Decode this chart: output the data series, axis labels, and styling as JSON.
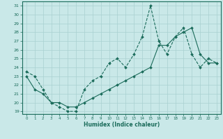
{
  "xlabel": "Humidex (Indice chaleur)",
  "background_color": "#c9e8e8",
  "grid_color": "#a8d0d0",
  "line_color": "#1a6b5a",
  "xlim": [
    -0.5,
    23.5
  ],
  "ylim": [
    18.7,
    31.5
  ],
  "yticks": [
    19,
    20,
    21,
    22,
    23,
    24,
    25,
    26,
    27,
    28,
    29,
    30,
    31
  ],
  "xticks": [
    0,
    1,
    2,
    3,
    4,
    5,
    6,
    7,
    8,
    9,
    10,
    11,
    12,
    13,
    14,
    15,
    16,
    17,
    18,
    19,
    20,
    21,
    22,
    23
  ],
  "line1_x": [
    0,
    1,
    2,
    3,
    4,
    5,
    6,
    7,
    8,
    9,
    10,
    11,
    12,
    13,
    14,
    15,
    16,
    17,
    18,
    19,
    20,
    21,
    22,
    23
  ],
  "line1_y": [
    23.5,
    23.0,
    21.5,
    20.0,
    19.5,
    19.0,
    19.0,
    21.5,
    22.5,
    23.0,
    24.5,
    25.0,
    24.0,
    25.5,
    27.5,
    31.0,
    27.0,
    25.5,
    27.5,
    28.5,
    25.5,
    24.0,
    25.0,
    24.5
  ],
  "line2_x": [
    0,
    1,
    2,
    3,
    4,
    5,
    6,
    7,
    8,
    9,
    10,
    11,
    12,
    13,
    14,
    15,
    16,
    17,
    18,
    19,
    20,
    21,
    22,
    23
  ],
  "line2_y": [
    23.0,
    21.5,
    21.0,
    20.0,
    20.0,
    19.5,
    19.5,
    20.0,
    20.5,
    21.0,
    21.5,
    22.0,
    22.5,
    23.0,
    23.5,
    24.0,
    26.5,
    26.5,
    27.5,
    28.0,
    28.5,
    25.5,
    24.5,
    24.5
  ],
  "markersize": 2.0
}
